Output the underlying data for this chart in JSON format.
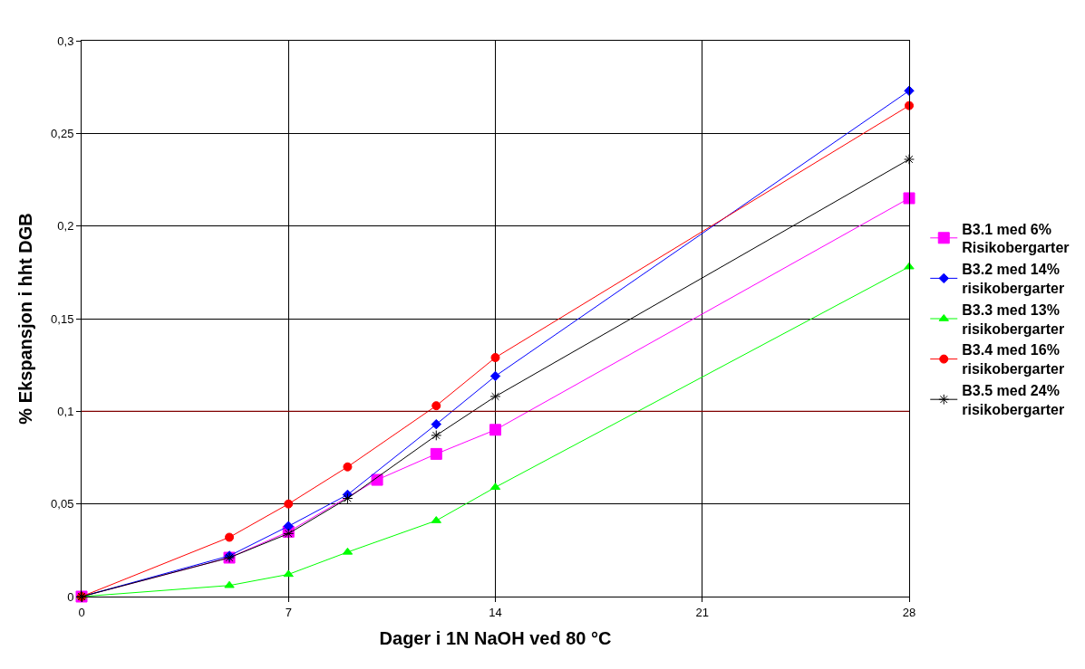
{
  "chart_data": {
    "type": "line",
    "xlabel": "Dager i 1N NaOH ved 80 °C",
    "ylabel": "% Ekspansjon i hht DGB",
    "xlim": [
      0,
      28
    ],
    "xticks": [
      0,
      7,
      14,
      21,
      28
    ],
    "ylim": [
      0,
      0.3
    ],
    "yticks": [
      0,
      {
        "value": 0.05,
        "label": "0,05"
      },
      {
        "value": 0.1,
        "label": "0,1"
      },
      {
        "value": 0.15,
        "label": "0,15"
      },
      {
        "value": 0.2,
        "label": "0,2"
      },
      {
        "value": 0.25,
        "label": "0,25"
      },
      {
        "value": 0.3,
        "label": "0,3"
      }
    ],
    "grid": true,
    "legend": "right",
    "ref_lines": [
      {
        "axis": "y",
        "value": 0.1,
        "color": "#800000"
      }
    ],
    "series": [
      {
        "name": "B3.1 med 6% Risikobergarter",
        "color": "#ff00ff",
        "marker": "square",
        "x": [
          0,
          5,
          7,
          10,
          12,
          14,
          28
        ],
        "values": [
          0,
          0.021,
          0.035,
          0.063,
          0.077,
          0.09,
          0.215
        ]
      },
      {
        "name": "B3.2 med 14% risikobergarter",
        "color": "#0000ff",
        "marker": "diamond",
        "x": [
          0,
          5,
          7,
          9,
          12,
          14,
          28
        ],
        "values": [
          0,
          0.022,
          0.038,
          0.055,
          0.093,
          0.119,
          0.273
        ]
      },
      {
        "name": "B3.3 med 13% risikobergarter",
        "color": "#00ff00",
        "marker": "triangle",
        "x": [
          0,
          5,
          7,
          9,
          12,
          14,
          28
        ],
        "values": [
          0,
          0.006,
          0.012,
          0.024,
          0.041,
          0.059,
          0.178
        ]
      },
      {
        "name": "B3.4 med 16% risikobergarter",
        "color": "#ff0000",
        "marker": "circle",
        "x": [
          0,
          5,
          7,
          9,
          12,
          14,
          28
        ],
        "values": [
          0,
          0.032,
          0.05,
          0.07,
          0.103,
          0.129,
          0.265
        ]
      },
      {
        "name": "B3.5 med 24% risikobergarter",
        "color": "#000000",
        "marker": "cross",
        "x": [
          0,
          5,
          7,
          9,
          12,
          14,
          28
        ],
        "values": [
          0,
          0.021,
          0.034,
          0.053,
          0.087,
          0.108,
          0.236
        ]
      }
    ]
  }
}
